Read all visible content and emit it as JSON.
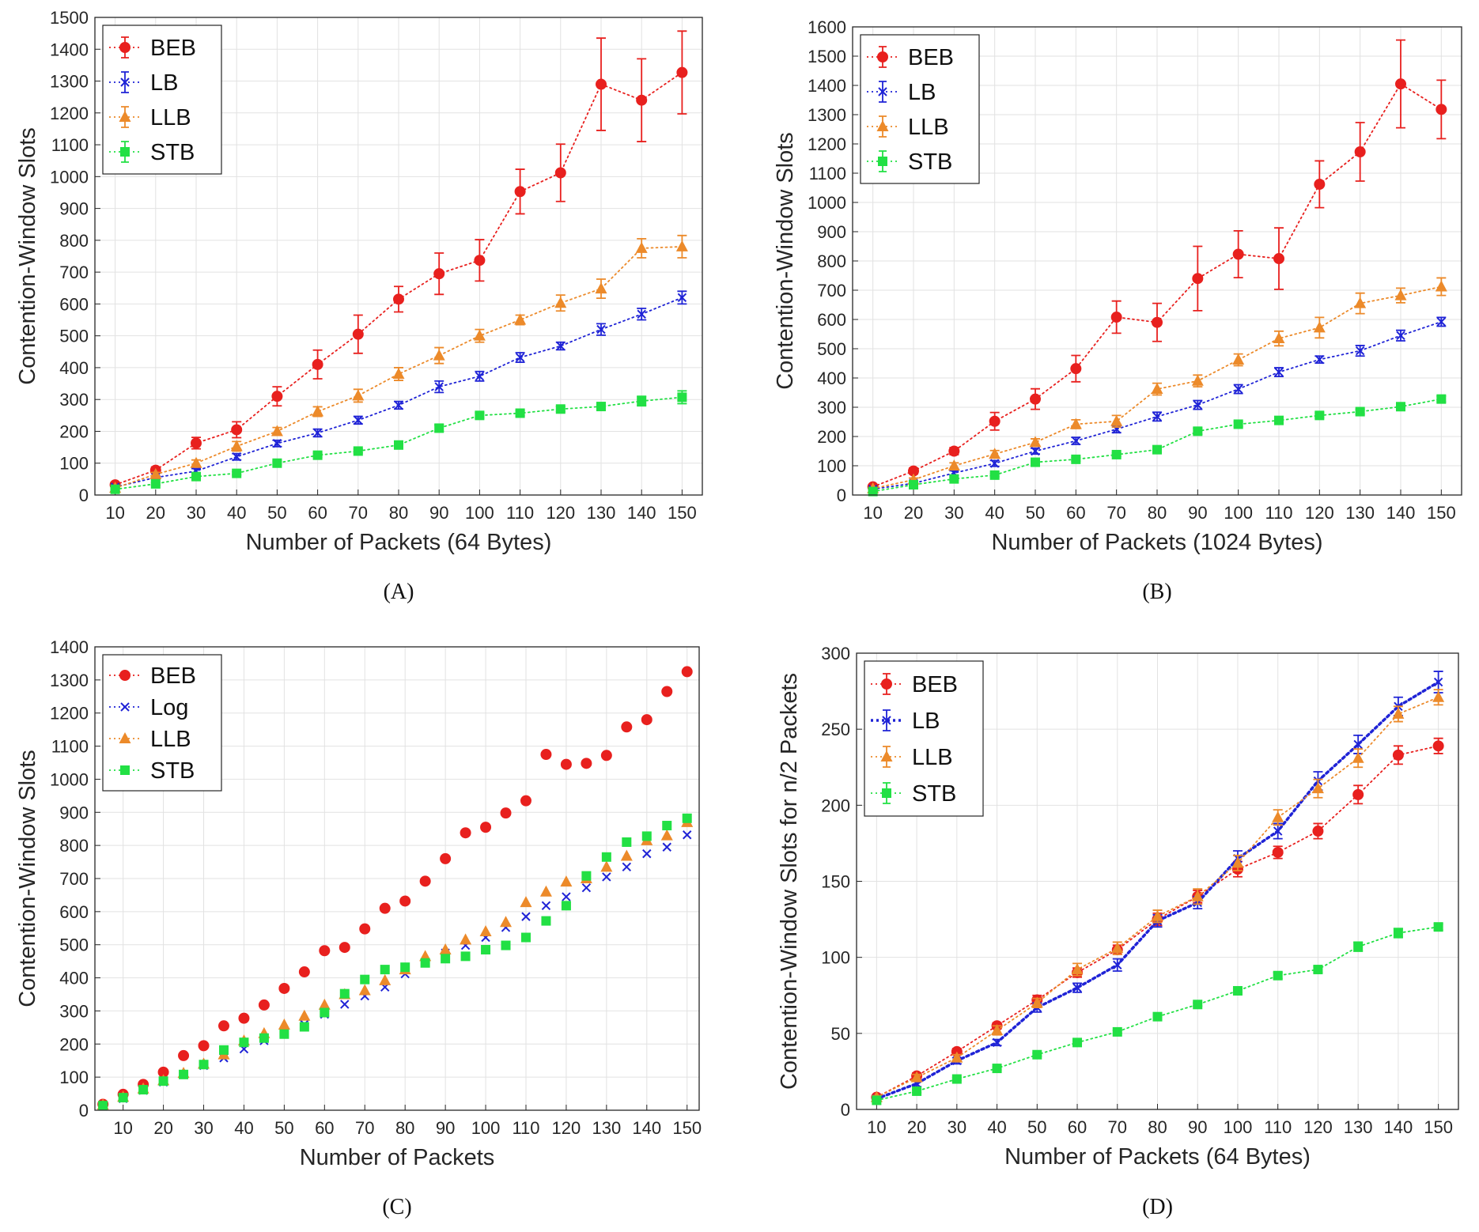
{
  "chart_data": [
    {
      "type": "line",
      "panel": "A",
      "caption": "(A)",
      "xlabel": "Number of Packets (64 Bytes)",
      "ylabel": "Contention-Window Slots",
      "xlim": [
        5,
        155
      ],
      "ylim": [
        0,
        1500
      ],
      "xticks": [
        10,
        20,
        30,
        40,
        50,
        60,
        70,
        80,
        90,
        100,
        110,
        120,
        130,
        140,
        150
      ],
      "yticks": [
        0,
        100,
        200,
        300,
        400,
        500,
        600,
        700,
        800,
        900,
        1000,
        1100,
        1200,
        1300,
        1400,
        1500
      ],
      "grid": true,
      "legend_position": "top-left",
      "x": [
        10,
        20,
        30,
        40,
        50,
        60,
        70,
        80,
        90,
        100,
        110,
        120,
        130,
        140,
        150
      ],
      "series": [
        {
          "name": "BEB",
          "color": "#e8201e",
          "marker": "circle",
          "line": "dotted",
          "values": [
            32,
            78,
            163,
            205,
            310,
            410,
            505,
            615,
            695,
            737,
            953,
            1012,
            1290,
            1240,
            1327
          ],
          "errors": [
            8,
            10,
            18,
            25,
            30,
            45,
            60,
            40,
            65,
            65,
            70,
            90,
            145,
            130,
            130
          ]
        },
        {
          "name": "LB",
          "color": "#1f23d6",
          "marker": "x",
          "line": "dotted",
          "values": [
            25,
            55,
            75,
            120,
            162,
            195,
            235,
            282,
            340,
            373,
            432,
            468,
            520,
            568,
            620
          ],
          "errors": [
            3,
            5,
            8,
            10,
            10,
            12,
            12,
            12,
            18,
            15,
            15,
            12,
            18,
            18,
            20
          ]
        },
        {
          "name": "LLB",
          "color": "#ec8a2a",
          "marker": "triangle",
          "line": "dotted",
          "values": [
            22,
            65,
            100,
            153,
            200,
            262,
            312,
            380,
            438,
            500,
            550,
            603,
            648,
            775,
            780
          ],
          "errors": [
            3,
            6,
            10,
            15,
            12,
            15,
            20,
            20,
            25,
            20,
            15,
            25,
            30,
            30,
            35
          ]
        },
        {
          "name": "STB",
          "color": "#22e044",
          "marker": "square",
          "line": "dotted",
          "values": [
            18,
            35,
            58,
            68,
            100,
            125,
            138,
            157,
            210,
            250,
            257,
            270,
            278,
            295,
            307
          ],
          "errors": [
            3,
            4,
            5,
            5,
            6,
            6,
            6,
            7,
            10,
            8,
            8,
            8,
            10,
            15,
            20
          ]
        }
      ]
    },
    {
      "type": "line",
      "panel": "B",
      "caption": "(B)",
      "xlabel": "Number of Packets (1024 Bytes)",
      "ylabel": "Contention-Window Slots",
      "xlim": [
        5,
        155
      ],
      "ylim": [
        0,
        1600
      ],
      "xticks": [
        10,
        20,
        30,
        40,
        50,
        60,
        70,
        80,
        90,
        100,
        110,
        120,
        130,
        140,
        150
      ],
      "yticks": [
        0,
        100,
        200,
        300,
        400,
        500,
        600,
        700,
        800,
        900,
        1000,
        1100,
        1200,
        1300,
        1400,
        1500,
        1600
      ],
      "grid": true,
      "legend_position": "top-left",
      "x": [
        10,
        20,
        30,
        40,
        50,
        60,
        70,
        80,
        90,
        100,
        110,
        120,
        130,
        140,
        150
      ],
      "series": [
        {
          "name": "BEB",
          "color": "#e8201e",
          "marker": "circle",
          "line": "dotted",
          "values": [
            28,
            82,
            150,
            252,
            328,
            432,
            608,
            590,
            740,
            823,
            808,
            1062,
            1173,
            1405,
            1318
          ],
          "errors": [
            6,
            10,
            12,
            30,
            35,
            45,
            55,
            65,
            110,
            80,
            105,
            80,
            100,
            150,
            100
          ]
        },
        {
          "name": "LB",
          "color": "#1f23d6",
          "marker": "x",
          "line": "dotted",
          "values": [
            20,
            40,
            75,
            108,
            150,
            185,
            225,
            268,
            308,
            362,
            420,
            463,
            493,
            545,
            592
          ],
          "errors": [
            3,
            5,
            8,
            10,
            10,
            12,
            12,
            15,
            15,
            15,
            15,
            12,
            18,
            18,
            15
          ]
        },
        {
          "name": "LLB",
          "color": "#ec8a2a",
          "marker": "triangle",
          "line": "dotted",
          "values": [
            22,
            52,
            100,
            140,
            180,
            242,
            252,
            362,
            390,
            462,
            535,
            572,
            655,
            682,
            712
          ],
          "errors": [
            3,
            6,
            10,
            12,
            12,
            15,
            20,
            20,
            20,
            20,
            25,
            35,
            35,
            25,
            30
          ]
        },
        {
          "name": "STB",
          "color": "#22e044",
          "marker": "square",
          "line": "dotted",
          "values": [
            12,
            35,
            55,
            68,
            112,
            122,
            138,
            155,
            218,
            242,
            255,
            272,
            285,
            302,
            328
          ],
          "errors": [
            3,
            4,
            5,
            5,
            6,
            6,
            6,
            7,
            10,
            8,
            8,
            8,
            8,
            10,
            10
          ]
        }
      ]
    },
    {
      "type": "scatter",
      "panel": "C",
      "caption": "(C)",
      "xlabel": "Number of Packets",
      "ylabel": "Contention-Window Slots",
      "xlim": [
        3,
        153
      ],
      "ylim": [
        0,
        1400
      ],
      "xticks": [
        10,
        20,
        30,
        40,
        50,
        60,
        70,
        80,
        90,
        100,
        110,
        120,
        130,
        140,
        150
      ],
      "yticks": [
        0,
        100,
        200,
        300,
        400,
        500,
        600,
        700,
        800,
        900,
        1000,
        1100,
        1200,
        1300,
        1400
      ],
      "grid": true,
      "legend_position": "top-left",
      "x": [
        5,
        10,
        15,
        20,
        25,
        30,
        35,
        40,
        45,
        50,
        55,
        60,
        65,
        70,
        75,
        80,
        85,
        90,
        95,
        100,
        105,
        110,
        115,
        120,
        125,
        130,
        135,
        140,
        145,
        150
      ],
      "series": [
        {
          "name": "BEB",
          "color": "#e8201e",
          "marker": "circle",
          "values": [
            18,
            48,
            78,
            115,
            165,
            195,
            255,
            278,
            318,
            368,
            418,
            482,
            492,
            548,
            610,
            632,
            692,
            760,
            838,
            855,
            898,
            935,
            1075,
            1045,
            1048,
            1072,
            1158,
            1180,
            1265,
            1325
          ]
        },
        {
          "name": "Log",
          "color": "#1f23d6",
          "marker": "x",
          "values": [
            12,
            35,
            60,
            85,
            108,
            135,
            158,
            185,
            210,
            235,
            260,
            290,
            320,
            345,
            372,
            412,
            448,
            475,
            498,
            522,
            552,
            585,
            618,
            645,
            672,
            705,
            735,
            775,
            795,
            832
          ]
        },
        {
          "name": "LLB",
          "color": "#ec8a2a",
          "marker": "triangle",
          "values": [
            16,
            40,
            65,
            90,
            112,
            140,
            168,
            210,
            232,
            258,
            285,
            318,
            350,
            362,
            392,
            425,
            465,
            485,
            515,
            540,
            568,
            628,
            660,
            690,
            700,
            735,
            768,
            815,
            830,
            870
          ]
        },
        {
          "name": "STB",
          "color": "#22e044",
          "marker": "square",
          "values": [
            14,
            38,
            62,
            88,
            108,
            138,
            182,
            205,
            218,
            230,
            252,
            295,
            352,
            395,
            425,
            432,
            445,
            458,
            465,
            485,
            498,
            522,
            572,
            618,
            708,
            765,
            810,
            828,
            860,
            882
          ]
        }
      ]
    },
    {
      "type": "line",
      "panel": "D",
      "caption": "(D)",
      "xlabel": "Number of Packets (64 Bytes)",
      "ylabel": "Contention-Window Slots for n/2 Packets",
      "xlim": [
        5,
        155
      ],
      "ylim": [
        0,
        300
      ],
      "xticks": [
        10,
        20,
        30,
        40,
        50,
        60,
        70,
        80,
        90,
        100,
        110,
        120,
        130,
        140,
        150
      ],
      "yticks": [
        0,
        50,
        100,
        150,
        200,
        250,
        300
      ],
      "grid": true,
      "legend_position": "top-left",
      "x": [
        10,
        20,
        30,
        40,
        50,
        60,
        70,
        80,
        90,
        100,
        110,
        120,
        130,
        140,
        150
      ],
      "series": [
        {
          "name": "BEB",
          "color": "#e8201e",
          "marker": "circle",
          "line": "dotted",
          "values": [
            8,
            22,
            38,
            55,
            72,
            90,
            105,
            125,
            140,
            158,
            169,
            183,
            207,
            233,
            239
          ],
          "errors": [
            1,
            2,
            2,
            2,
            3,
            3,
            3,
            4,
            4,
            5,
            4,
            5,
            6,
            6,
            5
          ]
        },
        {
          "name": "LB",
          "color": "#1f23d6",
          "marker": "x",
          "line": "dotted-bold",
          "values": [
            7,
            17,
            32,
            44,
            67,
            80,
            95,
            124,
            136,
            165,
            183,
            216,
            240,
            265,
            281
          ],
          "errors": [
            1,
            2,
            2,
            2,
            3,
            3,
            4,
            4,
            4,
            5,
            5,
            6,
            6,
            6,
            7
          ]
        },
        {
          "name": "LLB",
          "color": "#ec8a2a",
          "marker": "triangle",
          "line": "dotted",
          "values": [
            8,
            21,
            34,
            52,
            70,
            92,
            106,
            127,
            140,
            162,
            192,
            211,
            231,
            260,
            271
          ],
          "errors": [
            1,
            2,
            2,
            3,
            3,
            4,
            4,
            4,
            5,
            5,
            5,
            6,
            6,
            5,
            5
          ]
        },
        {
          "name": "STB",
          "color": "#22e044",
          "marker": "square",
          "line": "dotted",
          "values": [
            6,
            12,
            20,
            27,
            36,
            44,
            51,
            61,
            69,
            78,
            88,
            92,
            107,
            116,
            120
          ],
          "errors": [
            1,
            1,
            1,
            1,
            1,
            1,
            1,
            1,
            1,
            1,
            2,
            2,
            3,
            3,
            2
          ]
        }
      ]
    }
  ]
}
